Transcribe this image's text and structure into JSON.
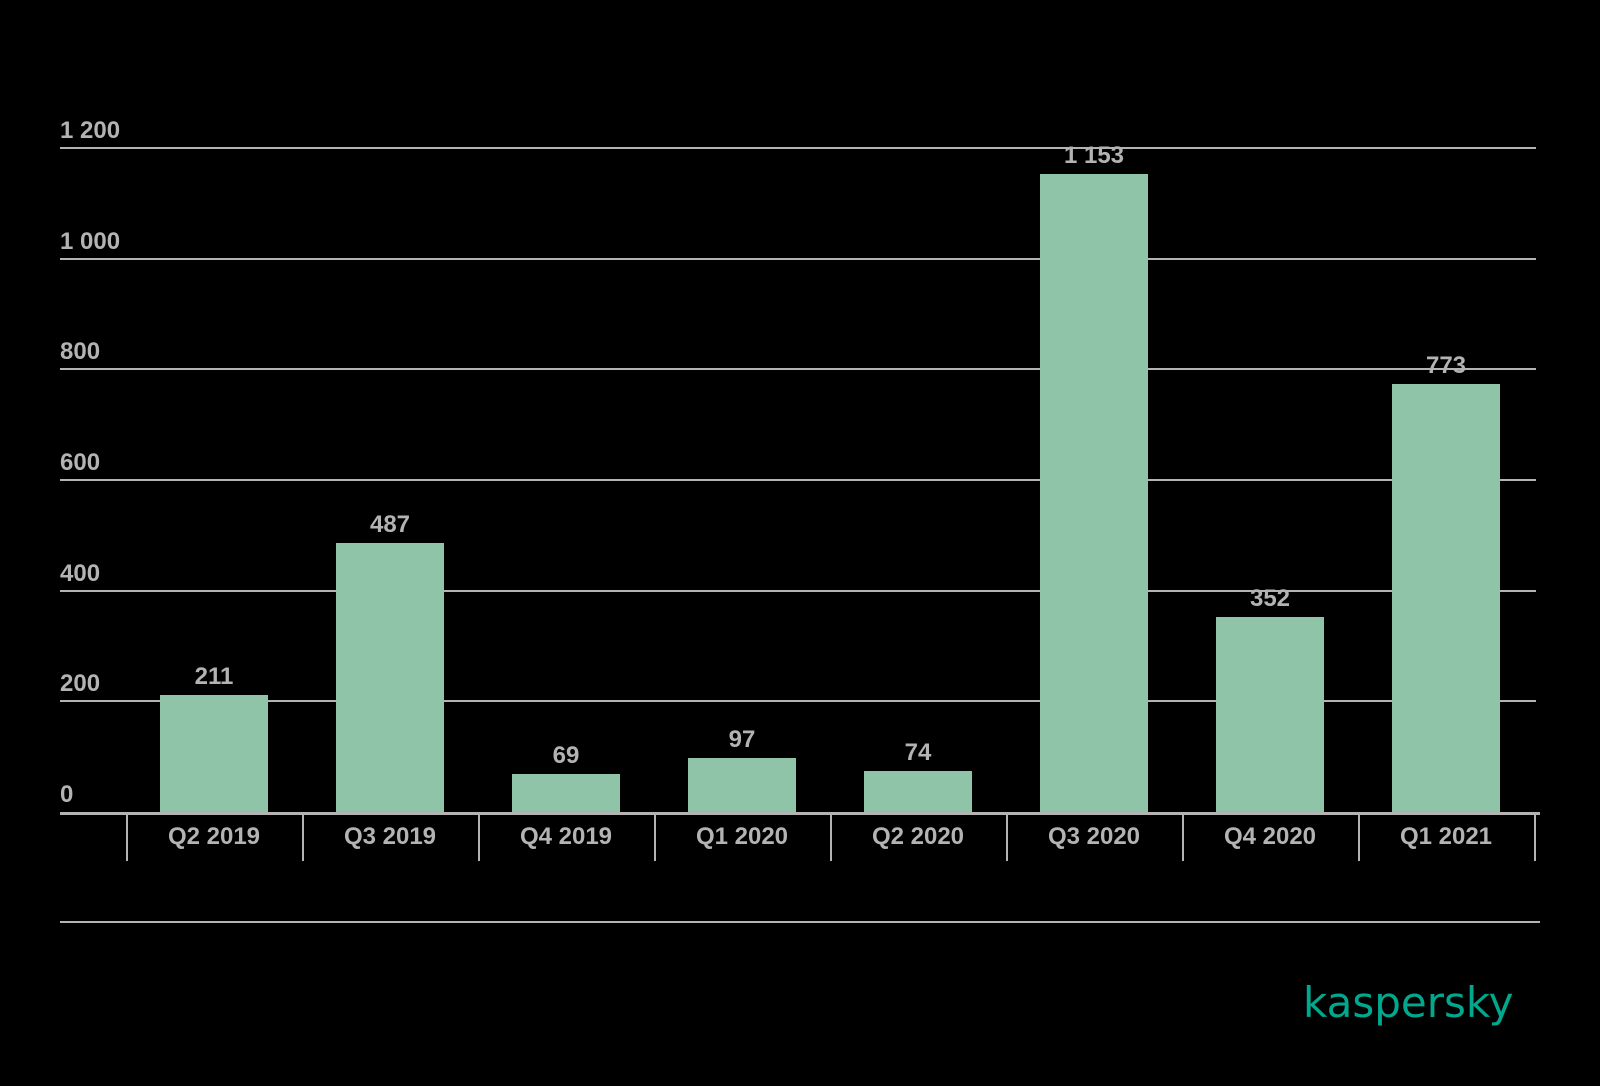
{
  "chart_data": {
    "type": "bar",
    "title": "",
    "xlabel": "",
    "ylabel": "",
    "categories": [
      "Q2 2019",
      "Q3 2019",
      "Q4 2019",
      "Q1 2020",
      "Q2 2020",
      "Q3 2020",
      "Q4 2020",
      "Q1 2021"
    ],
    "values": [
      211,
      487,
      69,
      97,
      74,
      1153,
      352,
      773
    ],
    "value_labels": [
      "211",
      "487",
      "69",
      "97",
      "74",
      "1 153",
      "352",
      "773"
    ],
    "ylim": [
      0,
      1200
    ],
    "yticks": [
      0,
      200,
      400,
      600,
      800,
      1000,
      1200
    ],
    "ytick_labels": [
      "0",
      "200",
      "400",
      "600",
      "800",
      "1 000",
      "1 200"
    ],
    "grid": true,
    "legend": null,
    "bar_color": "#8fc4a9"
  },
  "branding": {
    "logo_text": "kaspersky",
    "logo_color": "#00a88e"
  }
}
